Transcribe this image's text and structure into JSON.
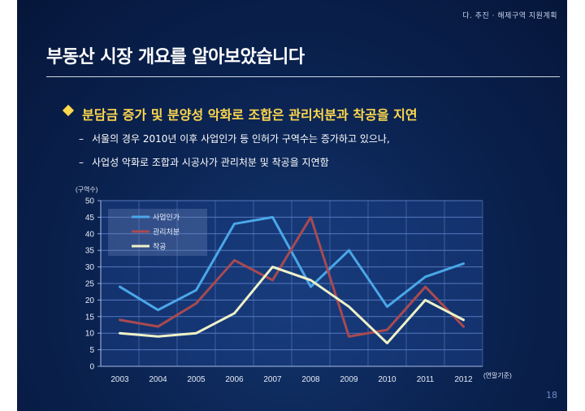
{
  "header": {
    "section_label": "다. 추진 · 해제구역 지원계획"
  },
  "page_title": "부동산 시장 개요를 알아보았습니다",
  "headline": "분담금 증가 및 분양성 악화로 조합은 관리처분과 착공을 지연",
  "bullets": [
    "서울의 경우 2010년 이후 사업인가 등 인허가 구역수는 증가하고 있으나,",
    "사업성 악화로 조합과 시공사가 관리처분 및 착공을 지연함"
  ],
  "page_number": "18",
  "colors": {
    "accent": "#ffd84d",
    "series1": "#4aa7e8",
    "series2": "#a84a50",
    "series3": "#eef2c8"
  },
  "chart_data": {
    "type": "line",
    "ylabel": "(구역수)",
    "xlabel": "(연말기준)",
    "categories": [
      "2003",
      "2004",
      "2005",
      "2006",
      "2007",
      "2008",
      "2009",
      "2010",
      "2011",
      "2012"
    ],
    "ylim": [
      0,
      50
    ],
    "yticks": [
      "0",
      "5",
      "10",
      "15",
      "20",
      "25",
      "30",
      "35",
      "40",
      "45",
      "50"
    ],
    "grid": true,
    "legend_position": "top-left",
    "series": [
      {
        "name": "사업인가",
        "color": "#4aa7e8",
        "values": [
          24,
          17,
          23,
          43,
          45,
          24,
          35,
          18,
          27,
          31
        ]
      },
      {
        "name": "관리처분",
        "color": "#a84a50",
        "values": [
          14,
          12,
          19,
          32,
          26,
          45,
          9,
          11,
          24,
          12
        ]
      },
      {
        "name": "착공",
        "color": "#eef2c8",
        "values": [
          10,
          9,
          10,
          16,
          30,
          26,
          18,
          7,
          20,
          14
        ]
      }
    ]
  }
}
